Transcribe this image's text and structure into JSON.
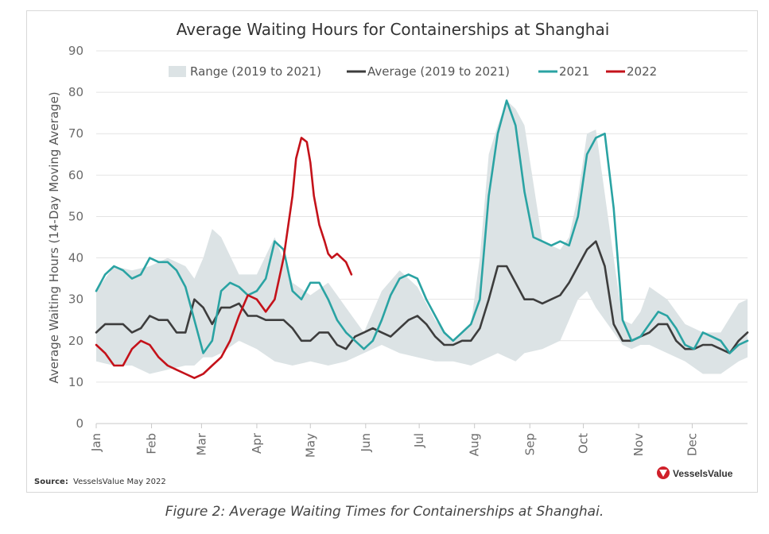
{
  "source_label": "Source:",
  "source_text": "VesselsValue May 2022",
  "logo_text": "VesselsValue",
  "caption": "Figure 2: Average Waiting Times for Containerships at Shanghai.",
  "colors": {
    "range": "#dce3e5",
    "average": "#3d3d3d",
    "s2021": "#2aa3a3",
    "s2022": "#c4121a",
    "logo": "#d0202a"
  },
  "chart_data": {
    "type": "line",
    "title": "Average Waiting Hours for Containerships at Shanghai",
    "ylabel": "Average Waiting Hours (14-Day Moving Average)",
    "xlabel": "",
    "ylim": [
      0,
      90
    ],
    "yticks": [
      0,
      10,
      20,
      30,
      40,
      50,
      60,
      70,
      80,
      90
    ],
    "xlim": [
      0,
      365
    ],
    "months": [
      {
        "label": "Jan",
        "day": 0
      },
      {
        "label": "Feb",
        "day": 31
      },
      {
        "label": "Mar",
        "day": 59
      },
      {
        "label": "Apr",
        "day": 90
      },
      {
        "label": "May",
        "day": 120
      },
      {
        "label": "Jun",
        "day": 151
      },
      {
        "label": "Jul",
        "day": 181
      },
      {
        "label": "Aug",
        "day": 212
      },
      {
        "label": "Sep",
        "day": 243
      },
      {
        "label": "Oct",
        "day": 273
      },
      {
        "label": "Nov",
        "day": 304
      },
      {
        "label": "Dec",
        "day": 334
      }
    ],
    "grid": "horizontal",
    "legend_position": "top",
    "range": {
      "name": "Range (2019 to 2021)",
      "x": [
        0,
        10,
        20,
        30,
        40,
        50,
        55,
        60,
        65,
        70,
        80,
        90,
        100,
        110,
        120,
        130,
        140,
        150,
        160,
        170,
        180,
        190,
        200,
        210,
        215,
        220,
        225,
        230,
        235,
        240,
        250,
        260,
        265,
        270,
        275,
        280,
        290,
        295,
        300,
        305,
        310,
        320,
        330,
        340,
        350,
        360,
        365
      ],
      "low": [
        15,
        14,
        14,
        12,
        13,
        14,
        14,
        16,
        16,
        17,
        20,
        18,
        15,
        14,
        15,
        14,
        15,
        17,
        19,
        17,
        16,
        15,
        15,
        14,
        15,
        16,
        17,
        16,
        15,
        17,
        18,
        20,
        25,
        30,
        32,
        28,
        22,
        19,
        18,
        19,
        19,
        17,
        15,
        12,
        12,
        15,
        16
      ],
      "high": [
        32,
        38,
        37,
        38,
        40,
        38,
        35,
        40,
        47,
        45,
        36,
        36,
        45,
        34,
        31,
        34,
        28,
        22,
        32,
        37,
        33,
        25,
        20,
        24,
        40,
        65,
        72,
        78,
        76,
        72,
        44,
        42,
        45,
        55,
        70,
        71,
        40,
        25,
        24,
        27,
        33,
        30,
        24,
        22,
        22,
        29,
        30
      ]
    },
    "series": [
      {
        "name": "Average (2019 to 2021)",
        "x": [
          0,
          5,
          10,
          15,
          20,
          25,
          30,
          35,
          40,
          45,
          50,
          55,
          60,
          65,
          70,
          75,
          80,
          85,
          90,
          95,
          100,
          105,
          110,
          115,
          120,
          125,
          130,
          135,
          140,
          145,
          150,
          155,
          160,
          165,
          170,
          175,
          180,
          185,
          190,
          195,
          200,
          205,
          210,
          215,
          220,
          225,
          230,
          235,
          240,
          245,
          250,
          255,
          260,
          265,
          270,
          275,
          280,
          285,
          290,
          295,
          300,
          305,
          310,
          315,
          320,
          325,
          330,
          335,
          340,
          345,
          350,
          355,
          360,
          365
        ],
        "y": [
          22,
          24,
          24,
          24,
          22,
          23,
          26,
          25,
          25,
          22,
          22,
          30,
          28,
          24,
          28,
          28,
          29,
          26,
          26,
          25,
          25,
          25,
          23,
          20,
          20,
          22,
          22,
          19,
          18,
          21,
          22,
          23,
          22,
          21,
          23,
          25,
          26,
          24,
          21,
          19,
          19,
          20,
          20,
          23,
          30,
          38,
          38,
          34,
          30,
          30,
          29,
          30,
          31,
          34,
          38,
          42,
          44,
          38,
          24,
          20,
          20,
          21,
          22,
          24,
          24,
          20,
          18,
          18,
          19,
          19,
          18,
          17,
          20,
          22
        ]
      },
      {
        "name": "2021",
        "x": [
          0,
          5,
          10,
          15,
          20,
          25,
          30,
          35,
          40,
          45,
          50,
          55,
          60,
          65,
          70,
          75,
          80,
          85,
          90,
          95,
          100,
          105,
          110,
          115,
          120,
          125,
          130,
          135,
          140,
          145,
          150,
          155,
          160,
          165,
          170,
          175,
          180,
          185,
          190,
          195,
          200,
          205,
          210,
          215,
          220,
          225,
          230,
          235,
          240,
          245,
          250,
          255,
          260,
          265,
          270,
          275,
          280,
          285,
          290,
          295,
          300,
          305,
          310,
          315,
          320,
          325,
          330,
          335,
          340,
          345,
          350,
          355,
          360,
          365
        ],
        "y": [
          32,
          36,
          38,
          37,
          35,
          36,
          40,
          39,
          39,
          37,
          33,
          25,
          17,
          20,
          32,
          34,
          33,
          31,
          32,
          35,
          44,
          42,
          32,
          30,
          34,
          34,
          30,
          25,
          22,
          20,
          18,
          20,
          25,
          31,
          35,
          36,
          35,
          30,
          26,
          22,
          20,
          22,
          24,
          30,
          55,
          70,
          78,
          72,
          56,
          45,
          44,
          43,
          44,
          43,
          50,
          65,
          69,
          70,
          52,
          25,
          20,
          21,
          24,
          27,
          26,
          23,
          19,
          18,
          22,
          21,
          20,
          17,
          19,
          20
        ]
      },
      {
        "name": "2022",
        "x": [
          0,
          5,
          10,
          15,
          20,
          25,
          30,
          35,
          40,
          45,
          50,
          55,
          60,
          65,
          70,
          75,
          80,
          85,
          90,
          95,
          100,
          105,
          110,
          112,
          115,
          118,
          120,
          122,
          125,
          128,
          130,
          132,
          135,
          140,
          143
        ],
        "y": [
          19,
          17,
          14,
          14,
          18,
          20,
          19,
          16,
          14,
          13,
          12,
          11,
          12,
          14,
          16,
          20,
          26,
          31,
          30,
          27,
          30,
          40,
          55,
          64,
          69,
          68,
          63,
          55,
          48,
          44,
          41,
          40,
          41,
          39,
          36
        ]
      }
    ]
  }
}
